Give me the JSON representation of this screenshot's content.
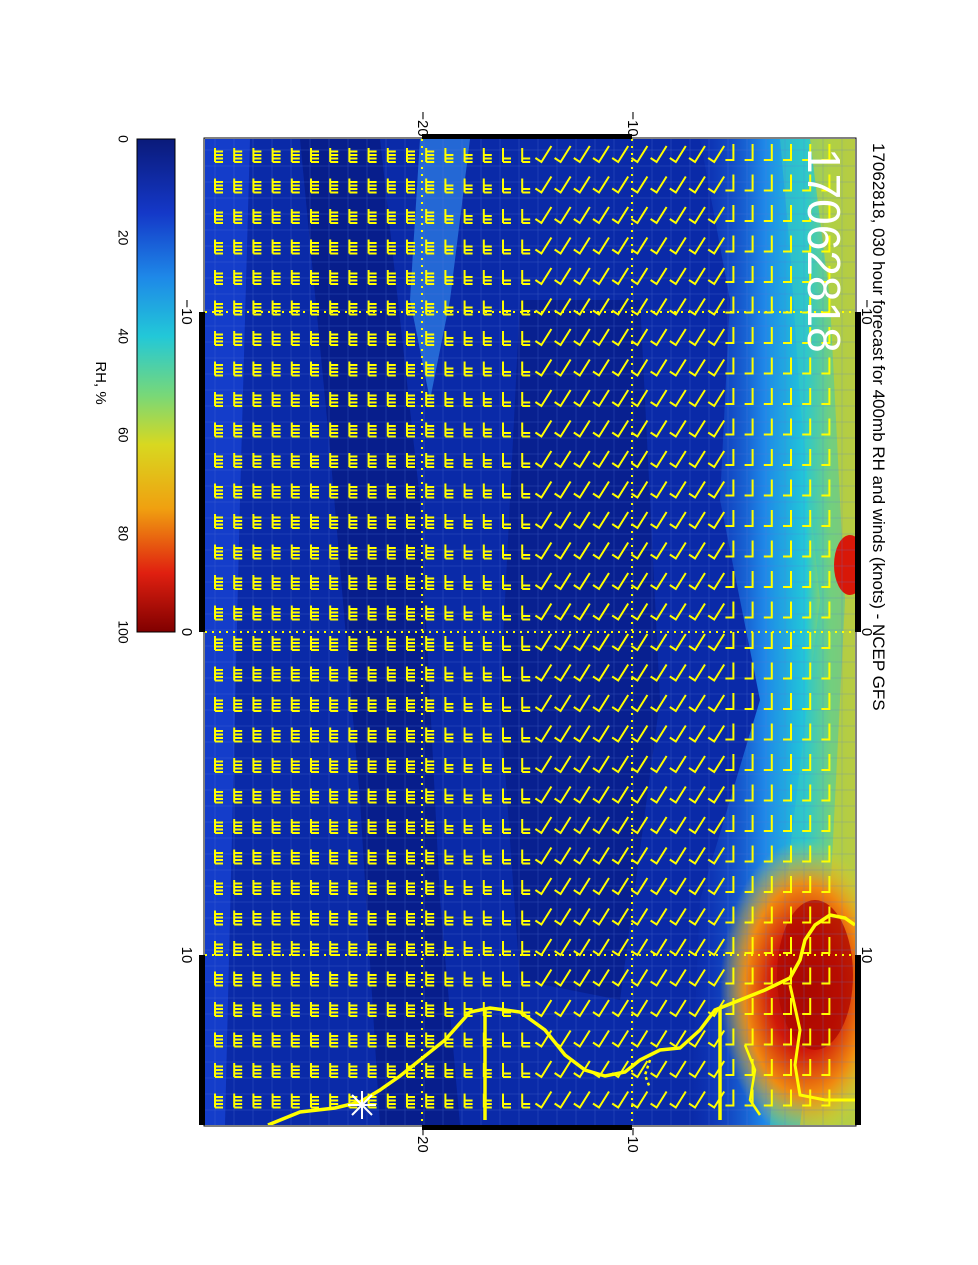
{
  "title": "17062818, 030 hour forecast for 400mb RH and winds (knots) - NCEP GFS",
  "stamp": "17062818",
  "colorbar": {
    "label": "RH, %",
    "ticks": [
      "0",
      "20",
      "40",
      "60",
      "80",
      "100"
    ],
    "stops": [
      "#0a1a7a",
      "#1438c8",
      "#1e88e8",
      "#22c8d8",
      "#78d878",
      "#d8d820",
      "#f0a010",
      "#e02010",
      "#800000"
    ]
  },
  "axes": {
    "lon_ticks": [
      "−20",
      "−10"
    ],
    "lat_ticks": [
      "−10",
      "0",
      "10"
    ]
  },
  "colors": {
    "field_base": "#0a2aa8",
    "barbs": "#ffff00",
    "coast": "#ffff00",
    "grid": "#ffff00"
  },
  "icons": [
    "wind-barb-icon",
    "station-star-icon"
  ]
}
